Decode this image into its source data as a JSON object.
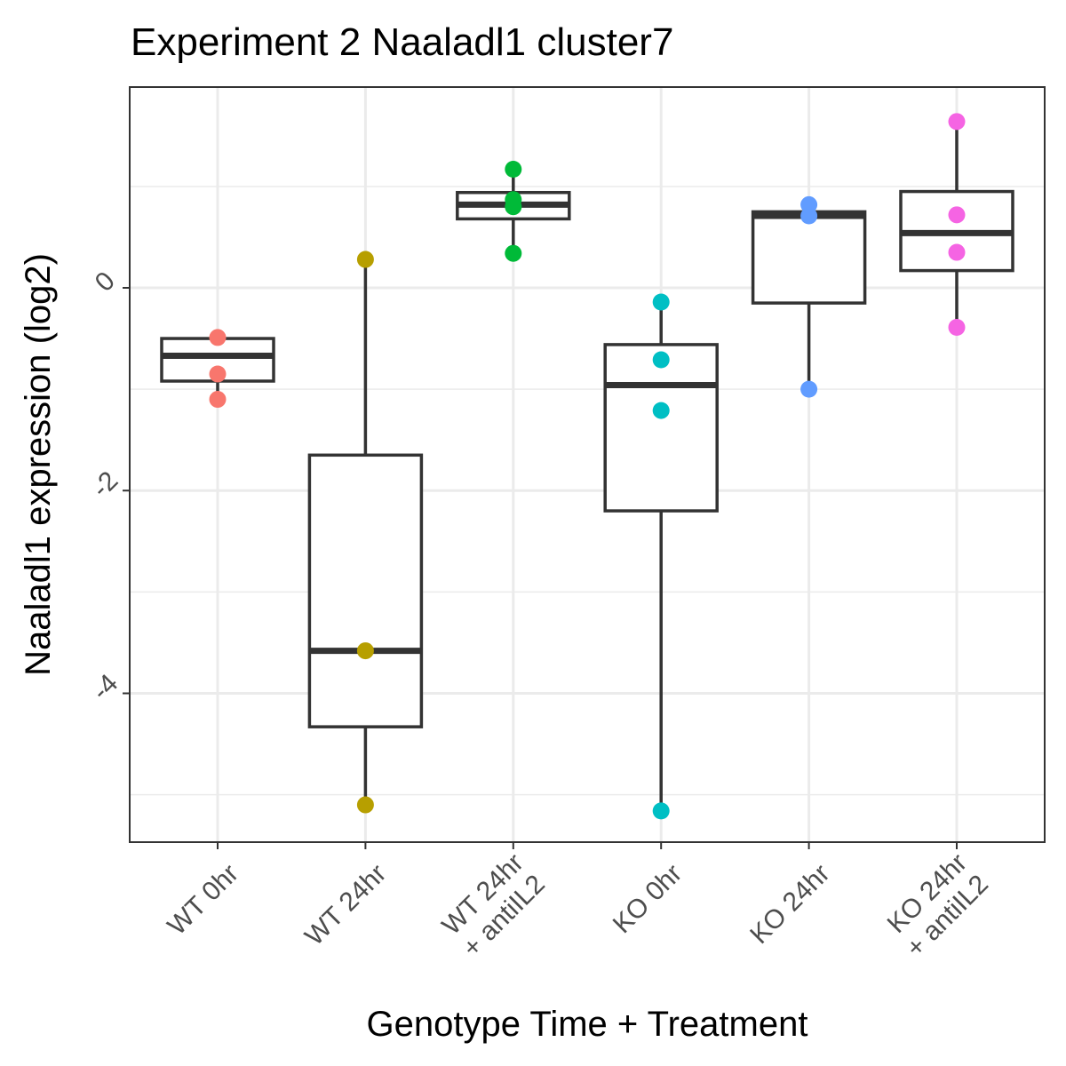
{
  "chart_data": {
    "type": "boxplot",
    "title": "Experiment 2 Naaladl1 cluster7",
    "xlabel": "Genotype Time + Treatment",
    "ylabel": "Naaladl1 expression (log2)",
    "ylim": [
      -5.5,
      1.95
    ],
    "y_ticks": [
      "0",
      "-2",
      "-4"
    ],
    "grid": true,
    "legend": "none",
    "categories": [
      {
        "label_lines": [
          "WT 0hr"
        ]
      },
      {
        "label_lines": [
          "WT 24hr"
        ]
      },
      {
        "label_lines": [
          "WT 24hr",
          "+ antiIL2"
        ]
      },
      {
        "label_lines": [
          "KO 0hr"
        ]
      },
      {
        "label_lines": [
          "KO 24hr"
        ]
      },
      {
        "label_lines": [
          "KO 24hr",
          "+ antiIL2"
        ]
      }
    ],
    "boxes": [
      {
        "category": "WT 0hr",
        "color": "#F8766D",
        "q1": -0.92,
        "median": -0.67,
        "q3": -0.5,
        "whisker_low": -1.1,
        "whisker_high": -0.5,
        "points": [
          -0.49,
          -0.85,
          -1.1
        ]
      },
      {
        "category": "WT 24hr",
        "color": "#B79F00",
        "q1": -4.33,
        "median": -3.58,
        "q3": -1.65,
        "whisker_low": -5.1,
        "whisker_high": 0.28,
        "points": [
          0.28,
          -3.58,
          -5.1
        ]
      },
      {
        "category": "WT 24hr + antiIL2",
        "color": "#00BA38",
        "q1": 0.68,
        "median": 0.82,
        "q3": 0.94,
        "whisker_low": 0.34,
        "whisker_high": 1.17,
        "points": [
          1.17,
          0.87,
          0.8,
          0.34
        ]
      },
      {
        "category": "KO 0hr",
        "color": "#00BFC4",
        "q1": -2.2,
        "median": -0.96,
        "q3": -0.56,
        "whisker_low": -5.16,
        "whisker_high": -0.14,
        "points": [
          -0.14,
          -0.71,
          -1.21,
          -5.16
        ]
      },
      {
        "category": "KO 24hr",
        "color": "#619CFF",
        "q1": -0.15,
        "median": 0.71,
        "q3": 0.75,
        "whisker_low": -1.0,
        "whisker_high": 0.82,
        "points": [
          0.82,
          0.71,
          -1.0
        ]
      },
      {
        "category": "KO 24hr + antiIL2",
        "color": "#F564E3",
        "q1": 0.17,
        "median": 0.54,
        "q3": 0.95,
        "whisker_low": -0.39,
        "whisker_high": 1.64,
        "points": [
          1.64,
          0.72,
          0.35,
          -0.39
        ]
      }
    ]
  }
}
